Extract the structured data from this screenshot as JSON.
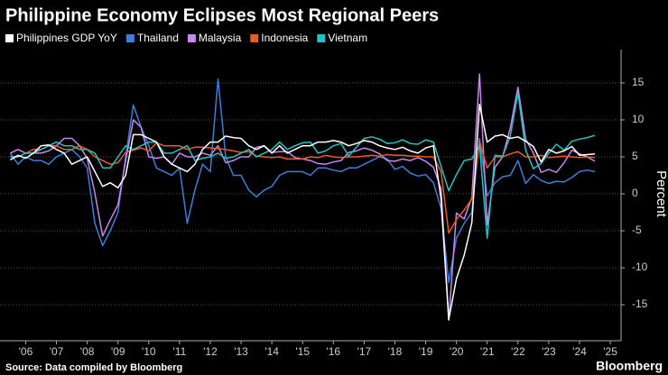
{
  "chart_data": {
    "type": "line",
    "title": "Philippine Economy Eclipses Most Regional Peers",
    "y_label": "Percent",
    "source": "Source: Data compiled by Bloomberg",
    "brand": "Bloomberg",
    "x": [
      2006,
      2006.25,
      2006.5,
      2006.75,
      2007,
      2007.25,
      2007.5,
      2007.75,
      2008,
      2008.25,
      2008.5,
      2008.75,
      2009,
      2009.25,
      2009.5,
      2009.75,
      2010,
      2010.25,
      2010.5,
      2010.75,
      2011,
      2011.25,
      2011.5,
      2011.75,
      2012,
      2012.25,
      2012.5,
      2012.75,
      2013,
      2013.25,
      2013.5,
      2013.75,
      2014,
      2014.25,
      2014.5,
      2014.75,
      2015,
      2015.25,
      2015.5,
      2015.75,
      2016,
      2016.25,
      2016.5,
      2016.75,
      2017,
      2017.25,
      2017.5,
      2017.75,
      2018,
      2018.25,
      2018.5,
      2018.75,
      2019,
      2019.25,
      2019.5,
      2019.75,
      2020,
      2020.25,
      2020.5,
      2020.75,
      2021,
      2021.25,
      2021.5,
      2021.75,
      2022,
      2022.25,
      2022.5,
      2022.75,
      2023,
      2023.25,
      2023.5,
      2023.75,
      2024,
      2024.25,
      2024.5,
      2024.75,
      2025
    ],
    "series": [
      {
        "name": "Philippines GDP YoY",
        "color": "#ffffff",
        "values": [
          4.6,
          5.2,
          4.8,
          5.5,
          6.5,
          6.6,
          6.0,
          5.5,
          4.0,
          4.5,
          5.0,
          3.0,
          1.0,
          1.5,
          0.8,
          2.5,
          8.0,
          8.0,
          7.5,
          7.0,
          5.0,
          4.0,
          3.5,
          3.0,
          4.0,
          6.0,
          7.0,
          7.0,
          7.8,
          7.6,
          7.5,
          6.5,
          6.0,
          6.5,
          5.5,
          6.5,
          5.5,
          6.0,
          6.5,
          6.5,
          7.0,
          7.0,
          7.2,
          7.0,
          6.5,
          6.8,
          7.2,
          7.0,
          6.5,
          6.2,
          6.0,
          6.3,
          5.8,
          5.5,
          6.2,
          6.5,
          -0.7,
          -17.0,
          -11.5,
          -8.3,
          -3.9,
          12.1,
          7.0,
          7.8,
          8.0,
          7.5,
          7.7,
          7.1,
          6.4,
          4.3,
          6.0,
          5.5,
          5.8,
          6.4,
          5.2,
          5.3,
          5.4
        ]
      },
      {
        "name": "Thailand",
        "color": "#3a7fdc",
        "values": [
          5.5,
          4.0,
          5.0,
          4.5,
          4.5,
          4.0,
          5.0,
          5.5,
          6.0,
          5.0,
          3.5,
          -4.0,
          -7.0,
          -5.0,
          -2.5,
          5.0,
          12.0,
          9.0,
          6.5,
          3.5,
          3.0,
          2.5,
          3.5,
          -4.0,
          0.5,
          4.0,
          3.0,
          15.5,
          5.0,
          2.5,
          2.5,
          0.5,
          -0.4,
          0.5,
          1.0,
          2.5,
          3.0,
          3.0,
          3.0,
          2.5,
          3.5,
          3.5,
          3.2,
          3.0,
          3.5,
          3.5,
          4.0,
          4.5,
          5.0,
          4.7,
          3.3,
          3.7,
          2.8,
          2.4,
          2.6,
          1.5,
          -2.0,
          -12.0,
          -6.0,
          -4.0,
          -2.5,
          7.5,
          -0.3,
          1.5,
          2.3,
          2.5,
          4.5,
          1.4,
          2.6,
          1.8,
          1.4,
          1.7,
          1.6,
          2.2,
          3.0,
          3.2,
          3.0
        ]
      },
      {
        "name": "Malaysia",
        "color": "#c886ee",
        "values": [
          5.5,
          6.0,
          5.5,
          5.5,
          5.5,
          5.8,
          6.5,
          7.5,
          7.5,
          6.5,
          4.8,
          0.1,
          -5.7,
          -3.5,
          -1.5,
          4.5,
          10.0,
          9.0,
          5.0,
          4.8,
          5.0,
          4.0,
          5.5,
          5.0,
          5.0,
          5.5,
          5.2,
          6.5,
          4.2,
          4.5,
          5.0,
          5.0,
          6.3,
          6.5,
          5.6,
          5.7,
          5.7,
          4.9,
          4.7,
          4.5,
          4.1,
          4.0,
          4.3,
          4.5,
          5.6,
          5.8,
          6.2,
          5.9,
          5.4,
          4.5,
          4.4,
          4.7,
          4.5,
          4.9,
          4.4,
          3.6,
          0.7,
          -17.1,
          -2.6,
          -3.4,
          -0.5,
          16.2,
          -4.2,
          3.6,
          5.0,
          8.9,
          14.4,
          7.4,
          5.5,
          2.9,
          3.3,
          2.9,
          4.2,
          5.9,
          5.4,
          5.0,
          4.4
        ]
      },
      {
        "name": "Indonesia",
        "color": "#ef5a1e",
        "values": [
          5.0,
          5.0,
          5.5,
          6.0,
          6.0,
          6.5,
          6.5,
          6.0,
          6.0,
          6.5,
          6.0,
          5.0,
          4.5,
          4.0,
          4.2,
          5.6,
          5.9,
          6.2,
          5.8,
          6.9,
          6.5,
          6.5,
          6.5,
          6.0,
          6.3,
          6.3,
          6.2,
          6.1,
          6.0,
          5.8,
          5.6,
          5.7,
          5.1,
          5.0,
          4.9,
          5.0,
          4.7,
          4.7,
          4.7,
          5.0,
          4.9,
          5.2,
          5.0,
          4.9,
          5.0,
          5.0,
          5.1,
          5.2,
          5.1,
          5.3,
          5.2,
          5.2,
          5.1,
          5.1,
          5.0,
          5.0,
          3.0,
          -5.3,
          -3.5,
          -2.2,
          -0.7,
          7.1,
          3.5,
          5.0,
          5.0,
          5.4,
          5.7,
          5.0,
          5.0,
          5.2,
          4.9,
          5.0,
          5.1,
          5.0,
          4.9,
          5.0,
          4.9
        ]
      },
      {
        "name": "Vietnam",
        "color": "#22c3c3",
        "values": [
          5.0,
          5.0,
          5.5,
          5.5,
          6.0,
          6.5,
          7.0,
          6.5,
          6.5,
          6.0,
          6.0,
          5.5,
          3.5,
          3.5,
          5.0,
          6.5,
          6.0,
          6.5,
          7.0,
          7.0,
          5.5,
          5.5,
          6.0,
          6.5,
          4.5,
          4.8,
          5.0,
          5.5,
          4.8,
          5.0,
          5.5,
          6.0,
          5.0,
          5.5,
          6.0,
          7.0,
          6.0,
          6.5,
          6.9,
          7.0,
          5.5,
          5.8,
          6.5,
          6.8,
          5.1,
          6.3,
          7.5,
          7.7,
          7.4,
          6.8,
          6.9,
          7.3,
          6.8,
          6.7,
          7.3,
          7.0,
          3.7,
          0.4,
          2.6,
          4.5,
          4.7,
          6.6,
          -6.0,
          5.2,
          5.1,
          7.8,
          13.7,
          5.9,
          3.4,
          4.1,
          5.5,
          6.7,
          5.9,
          7.1,
          7.4,
          7.6,
          7.9
        ]
      }
    ],
    "xlim": [
      2005.9,
      2025.85
    ],
    "xticks": [
      {
        "value": 2006.5,
        "label": "'06"
      },
      {
        "value": 2007.5,
        "label": "'07"
      },
      {
        "value": 2008.5,
        "label": "'08"
      },
      {
        "value": 2009.5,
        "label": "'09"
      },
      {
        "value": 2010.5,
        "label": "'10"
      },
      {
        "value": 2011.5,
        "label": "'11"
      },
      {
        "value": 2012.5,
        "label": "'12"
      },
      {
        "value": 2013.5,
        "label": "'13"
      },
      {
        "value": 2014.5,
        "label": "'14"
      },
      {
        "value": 2015.5,
        "label": "'15"
      },
      {
        "value": 2016.5,
        "label": "'16"
      },
      {
        "value": 2017.5,
        "label": "'17"
      },
      {
        "value": 2018.5,
        "label": "'18"
      },
      {
        "value": 2019.5,
        "label": "'19"
      },
      {
        "value": 2020.5,
        "label": "'20"
      },
      {
        "value": 2021.5,
        "label": "'21"
      },
      {
        "value": 2022.5,
        "label": "'22"
      },
      {
        "value": 2023.5,
        "label": "'23"
      },
      {
        "value": 2024.5,
        "label": "'24"
      },
      {
        "value": 2025.5,
        "label": "'25"
      }
    ],
    "ylim": [
      -19.5,
      19.5
    ],
    "yticks": [
      -15,
      -10,
      -5,
      0,
      5,
      10,
      15
    ],
    "grid": true
  }
}
